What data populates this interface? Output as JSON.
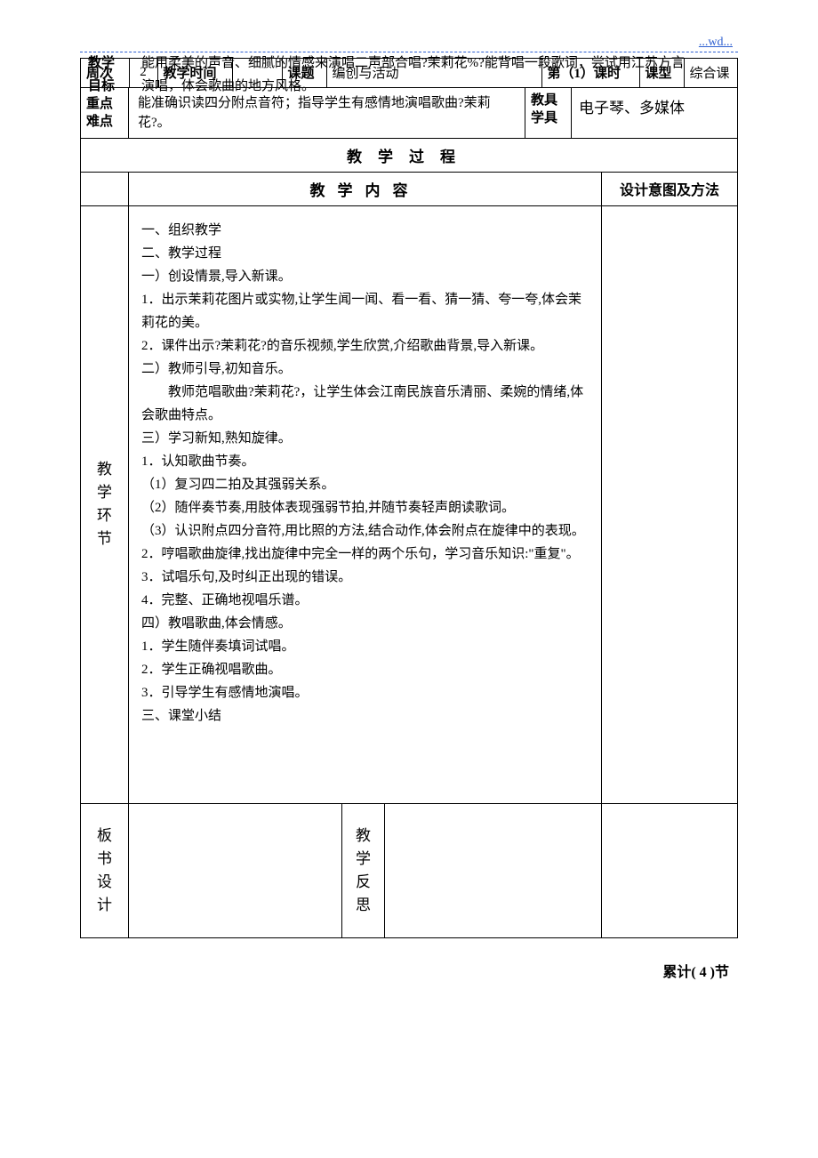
{
  "header_link": "...wd...",
  "overlap": {
    "goal_label": "教学",
    "goal_label2": "目标",
    "goal_text1": "能用柔美的声音、细腻的情感来演唱二声部合唱?茉莉花%?能背唱一段歌词，尝试用江苏方言",
    "goal_text2": "演唱，体会歌曲的地方风格。"
  },
  "row1": {
    "week_label": "周次",
    "week_val": "2",
    "time_label": "教学时间",
    "time_val": "",
    "topic_label": "课题",
    "topic_val": "编创与活动",
    "period_label": "第（1）课时",
    "type_label": "课型",
    "type_val": "综合课"
  },
  "row2": {
    "key_label1": "重点",
    "key_label2": "难点",
    "key_text": "能准确识读四分附点音符；指导学生有感情地演唱歌曲?茉莉花?。",
    "tool_label1": "教具",
    "tool_label2": "学具",
    "tool_val": "电子琴、多媒体"
  },
  "process_title": "教学过程",
  "content_title": "教学内容",
  "design_title": "设计意图及方法",
  "stage_label": "教学环节",
  "content_lines": [
    "一、组织教学",
    "二、教学过程",
    "一）创设情景,导入新课。",
    "1．出示茉莉花图片或实物,让学生闻一闻、看一看、猜一猜、夸一夸,体会茉莉花的美。",
    "2．课件出示?茉莉花?的音乐视频,学生欣赏,介绍歌曲背景,导入新课。",
    "二）教师引导,初知音乐。",
    "　　教师范唱歌曲?茉莉花?，让学生体会江南民族音乐清丽、柔婉的情绪,体会歌曲特点。",
    "三）学习新知,熟知旋律。",
    "1．认知歌曲节奏。",
    "（1）复习四二拍及其强弱关系。",
    "（2）随伴奏节奏,用肢体表现强弱节拍,并随节奏轻声朗读歌词。",
    "（3）认识附点四分音符,用比照的方法,结合动作,体会附点在旋律中的表现。",
    "2．哼唱歌曲旋律,找出旋律中完全一样的两个乐句，学习音乐知识:\"重复\"。",
    "3．试唱乐句,及时纠正出现的错误。",
    "4．完整、正确地视唱乐谱。",
    "四）教唱歌曲,体会情感。",
    "1．学生随伴奏填词试唱。",
    "2．学生正确视唱歌曲。",
    "3．引导学生有感情地演唱。",
    "三、课堂小结"
  ],
  "board_label": "板书设计",
  "reflect_label": "教学反思",
  "footer": "累计( 4 )节",
  "colors": {
    "link": "#2e5fd0",
    "border": "#000000",
    "bg": "#ffffff",
    "text": "#000000"
  }
}
